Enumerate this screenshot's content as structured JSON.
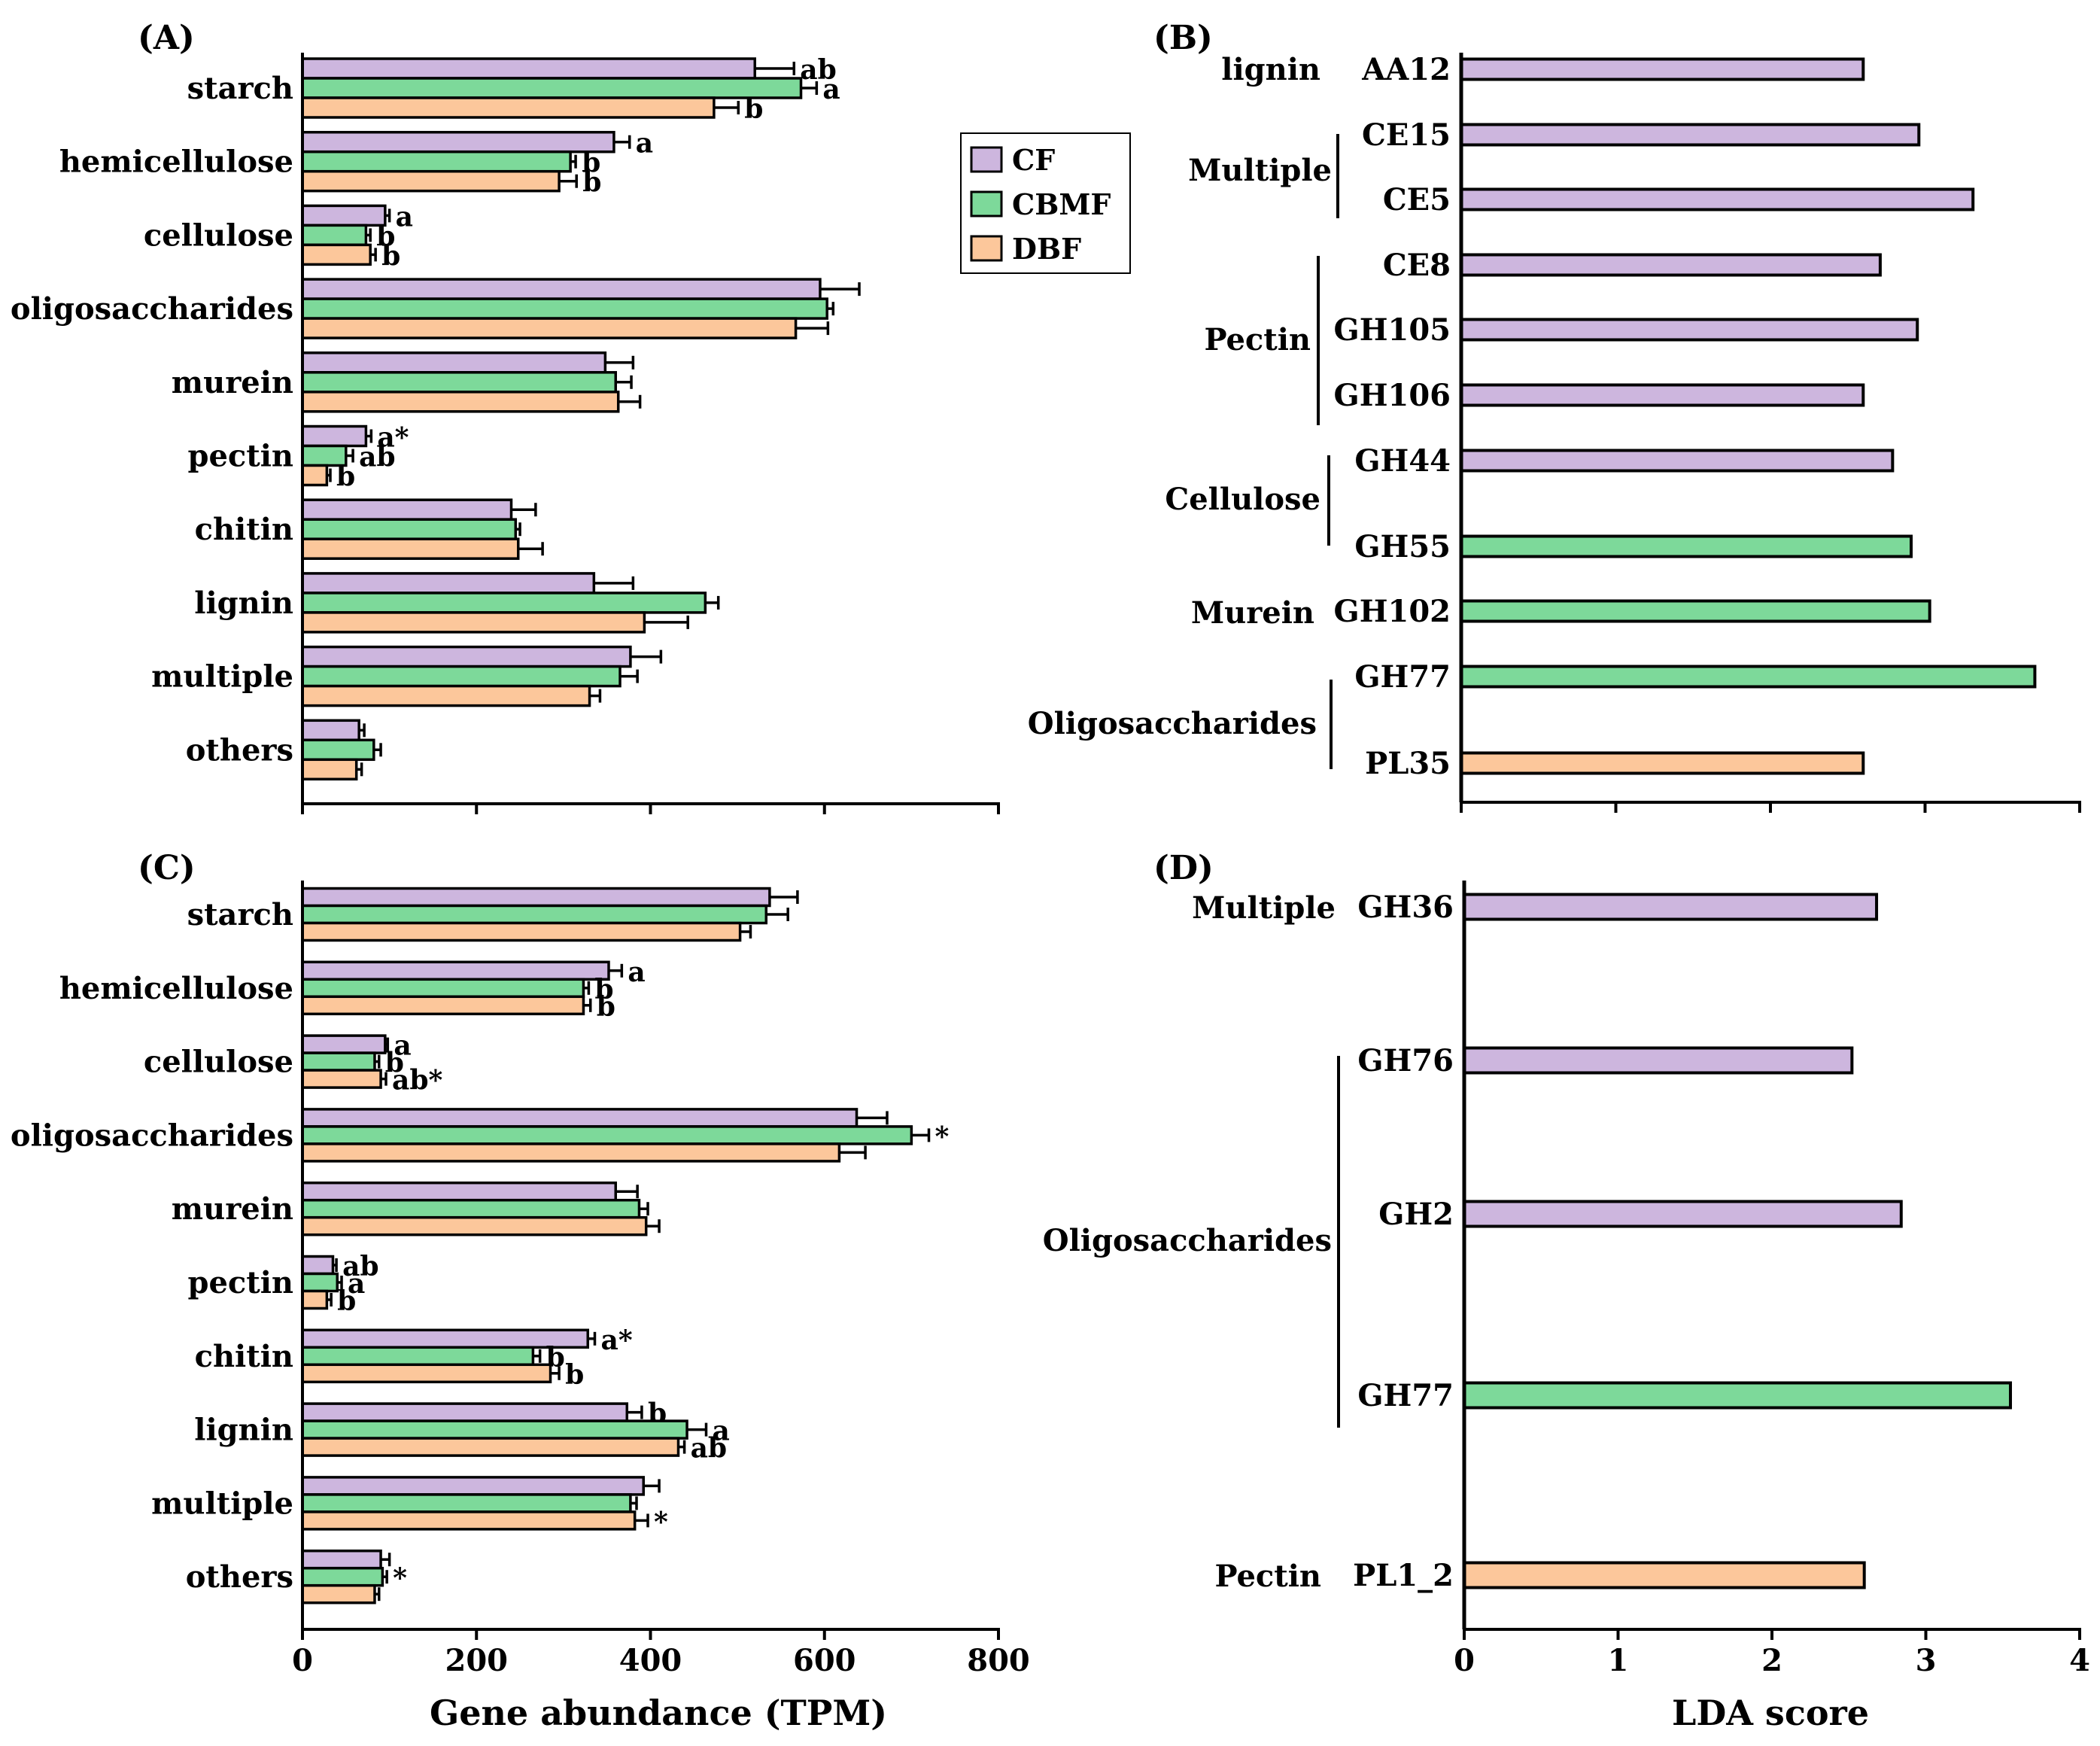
{
  "colors": {
    "CF": "#CDB6DE",
    "CBMF": "#7DD99A",
    "DBF": "#FCC79B",
    "axis": "#000000",
    "background": "#ffffff"
  },
  "legend": {
    "entries": [
      {
        "key": "CF",
        "label": "CF"
      },
      {
        "key": "CBMF",
        "label": "CBMF"
      },
      {
        "key": "DBF",
        "label": "DBF"
      }
    ]
  },
  "chart_data": [
    {
      "panel": "(A)",
      "type": "bar",
      "orientation": "horizontal",
      "categories": [
        "starch",
        "hemicellulose",
        "cellulose",
        "oligosaccharides",
        "murein",
        "pectin",
        "chitin",
        "lignin",
        "multiple",
        "others"
      ],
      "series": [
        {
          "name": "CF",
          "values": [
            520,
            358,
            95,
            595,
            348,
            73,
            240,
            335,
            377,
            65
          ],
          "errors": [
            45,
            18,
            5,
            45,
            32,
            6,
            28,
            45,
            35,
            6
          ],
          "labels": [
            "ab",
            "a",
            "a",
            "",
            "",
            "a*",
            "",
            "",
            "",
            ""
          ]
        },
        {
          "name": "CBMF",
          "values": [
            573,
            308,
            73,
            603,
            360,
            50,
            245,
            463,
            365,
            82
          ],
          "errors": [
            18,
            6,
            5,
            7,
            18,
            8,
            5,
            15,
            20,
            8
          ],
          "labels": [
            "a",
            "b",
            "b",
            "",
            "",
            "ab",
            "",
            "",
            "",
            ""
          ]
        },
        {
          "name": "DBF",
          "values": [
            473,
            295,
            78,
            567,
            363,
            28,
            248,
            393,
            330,
            62
          ],
          "errors": [
            28,
            20,
            6,
            37,
            25,
            4,
            28,
            50,
            12,
            6
          ],
          "labels": [
            "b",
            "b",
            "b",
            "",
            "",
            "b",
            "",
            "",
            "",
            ""
          ]
        }
      ],
      "xlim": [
        0,
        800
      ],
      "xticks": [
        0,
        200,
        400,
        600,
        800
      ],
      "xlabel": "",
      "show_tick_labels": false
    },
    {
      "panel": "(B)",
      "type": "bar",
      "orientation": "horizontal",
      "categories": [
        "AA12",
        "CE15",
        "CE5",
        "CE8",
        "GH105",
        "GH106",
        "GH44",
        "GH55",
        "GH102",
        "GH77",
        "PL35"
      ],
      "values": [
        2.6,
        2.96,
        3.31,
        2.71,
        2.95,
        2.6,
        2.79,
        2.91,
        3.03,
        3.71,
        2.6
      ],
      "groups": [
        "CF",
        "CF",
        "CF",
        "CF",
        "CF",
        "CF",
        "CF",
        "CBMF",
        "CBMF",
        "CBMF",
        "DBF"
      ],
      "substrate_groups": [
        {
          "label": "lignin",
          "members": [
            "AA12"
          ]
        },
        {
          "label": "Multiple",
          "members": [
            "CE15",
            "CE5"
          ]
        },
        {
          "label": "Pectin",
          "members": [
            "CE8",
            "GH105",
            "GH106"
          ]
        },
        {
          "label": "Cellulose",
          "members": [
            "GH44",
            "GH55"
          ]
        },
        {
          "label": "Murein",
          "members": [
            "GH102"
          ]
        },
        {
          "label": "Oligosaccharides",
          "members": [
            "GH77",
            "PL35"
          ]
        }
      ],
      "xlim": [
        0,
        4
      ],
      "xticks": [
        0,
        1,
        2,
        3,
        4
      ],
      "xlabel": "",
      "show_tick_labels": false
    },
    {
      "panel": "(C)",
      "type": "bar",
      "orientation": "horizontal",
      "categories": [
        "starch",
        "hemicellulose",
        "cellulose",
        "oligosaccharides",
        "murein",
        "pectin",
        "chitin",
        "lignin",
        "multiple",
        "others"
      ],
      "series": [
        {
          "name": "CF",
          "values": [
            537,
            352,
            95,
            637,
            360,
            35,
            328,
            373,
            392,
            90
          ],
          "errors": [
            32,
            15,
            3,
            35,
            25,
            4,
            8,
            17,
            18,
            10
          ],
          "labels": [
            "",
            "a",
            "a",
            "",
            "",
            "ab",
            "a*",
            "b",
            "",
            ""
          ]
        },
        {
          "name": "CBMF",
          "values": [
            533,
            323,
            83,
            700,
            387,
            40,
            265,
            442,
            377,
            92
          ],
          "errors": [
            25,
            6,
            5,
            20,
            10,
            5,
            8,
            22,
            7,
            5
          ],
          "labels": [
            "",
            "b",
            "b",
            "*",
            "",
            "a",
            "b",
            "a",
            "",
            "*"
          ]
        },
        {
          "name": "DBF",
          "values": [
            503,
            323,
            90,
            617,
            395,
            28,
            285,
            432,
            382,
            83
          ],
          "errors": [
            12,
            8,
            6,
            30,
            15,
            5,
            10,
            7,
            15,
            5
          ],
          "labels": [
            "",
            "b",
            "ab*",
            "",
            "",
            "b",
            "b",
            "ab",
            "*",
            ""
          ]
        }
      ],
      "xlim": [
        0,
        800
      ],
      "xticks": [
        0,
        200,
        400,
        600,
        800
      ],
      "tick_labels": [
        "0",
        "200",
        "400",
        "600",
        "800"
      ],
      "xlabel": "Gene abundance (TPM)"
    },
    {
      "panel": "(D)",
      "type": "bar",
      "orientation": "horizontal",
      "categories": [
        "GH36",
        "GH76",
        "GH2",
        "GH77",
        "PL1_2"
      ],
      "values": [
        2.68,
        2.52,
        2.84,
        3.55,
        2.6
      ],
      "groups": [
        "CF",
        "CF",
        "CF",
        "CBMF",
        "DBF"
      ],
      "substrate_groups": [
        {
          "label": "Multiple",
          "members": [
            "GH36"
          ]
        },
        {
          "label": "Oligosaccharides",
          "members": [
            "GH76",
            "GH2",
            "GH77"
          ]
        },
        {
          "label": "Pectin",
          "members": [
            "PL1_2"
          ]
        }
      ],
      "xlim": [
        0,
        4
      ],
      "xticks": [
        0,
        1,
        2,
        3,
        4
      ],
      "tick_labels": [
        "0",
        "1",
        "2",
        "3",
        "4"
      ],
      "xlabel": "LDA score"
    }
  ]
}
